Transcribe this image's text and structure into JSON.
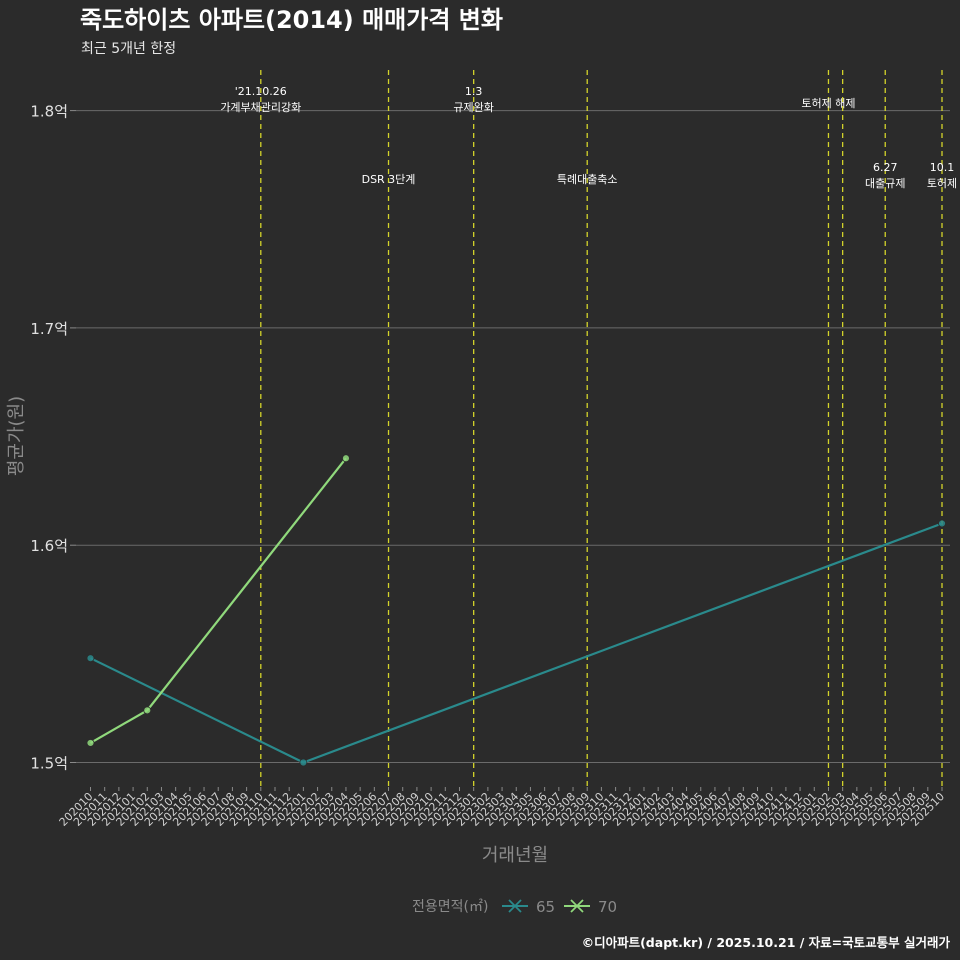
{
  "chart_data": {
    "type": "line",
    "title": "죽도하이츠 아파트(2014) 매매가격 변화",
    "subtitle": "최근 5개년 한정",
    "xlabel": "거래년월",
    "ylabel": "평균가(원)",
    "ylim": [
      1.49,
      1.82
    ],
    "yticks": [
      1.5,
      1.6,
      1.7,
      1.8
    ],
    "ytick_labels": [
      "1.5억",
      "1.6억",
      "1.7억",
      "1.8억"
    ],
    "categories": [
      "202010",
      "202011",
      "202012",
      "202101",
      "202102",
      "202103",
      "202104",
      "202105",
      "202106",
      "202107",
      "202108",
      "202109",
      "202110",
      "202111",
      "202112",
      "202201",
      "202202",
      "202203",
      "202204",
      "202205",
      "202206",
      "202207",
      "202208",
      "202209",
      "202210",
      "202211",
      "202212",
      "202301",
      "202302",
      "202303",
      "202304",
      "202305",
      "202306",
      "202307",
      "202308",
      "202309",
      "202310",
      "202311",
      "202312",
      "202401",
      "202402",
      "202403",
      "202404",
      "202405",
      "202406",
      "202407",
      "202408",
      "202409",
      "202410",
      "202411",
      "202412",
      "202501",
      "202502",
      "202503",
      "202504",
      "202505",
      "202506",
      "202507",
      "202508",
      "202509",
      "202510"
    ],
    "series": [
      {
        "name": "65",
        "color": "#2a8a8c",
        "points": [
          [
            "202010",
            1.548
          ],
          [
            "202201",
            1.5
          ],
          [
            "202510",
            1.61
          ]
        ]
      },
      {
        "name": "70",
        "color": "#90d97c",
        "points": [
          [
            "202010",
            1.509
          ],
          [
            "202102",
            1.524
          ],
          [
            "202204",
            1.64
          ]
        ]
      }
    ],
    "events": [
      {
        "month": "202110",
        "date": "'21.10.26",
        "label": "가계부채관리강화",
        "row": 1
      },
      {
        "month": "202207",
        "date": "",
        "label": "DSR 3단계",
        "row": 2
      },
      {
        "month": "202301",
        "date": "1.3",
        "label": "규제완화",
        "row": 1
      },
      {
        "month": "202309",
        "date": "",
        "label": "특례대출축소",
        "row": 2
      },
      {
        "month": "202502",
        "date": "",
        "label": "토허제 해제",
        "row": 1
      },
      {
        "month": "202503",
        "date": "",
        "label": "",
        "row": 0
      },
      {
        "month": "202506",
        "date": "6.27",
        "label": "대출규제",
        "row": 2
      },
      {
        "month": "202510",
        "date": "10.1",
        "label": "토허제",
        "row": 2
      }
    ],
    "event_line_color": "#d4d42a",
    "legend_title": "전용면적(㎡)",
    "legend_position": "bottom",
    "caption": "©디아파트(dapt.kr) / 2025.10.21 / 자료=국토교통부 실거래가"
  }
}
